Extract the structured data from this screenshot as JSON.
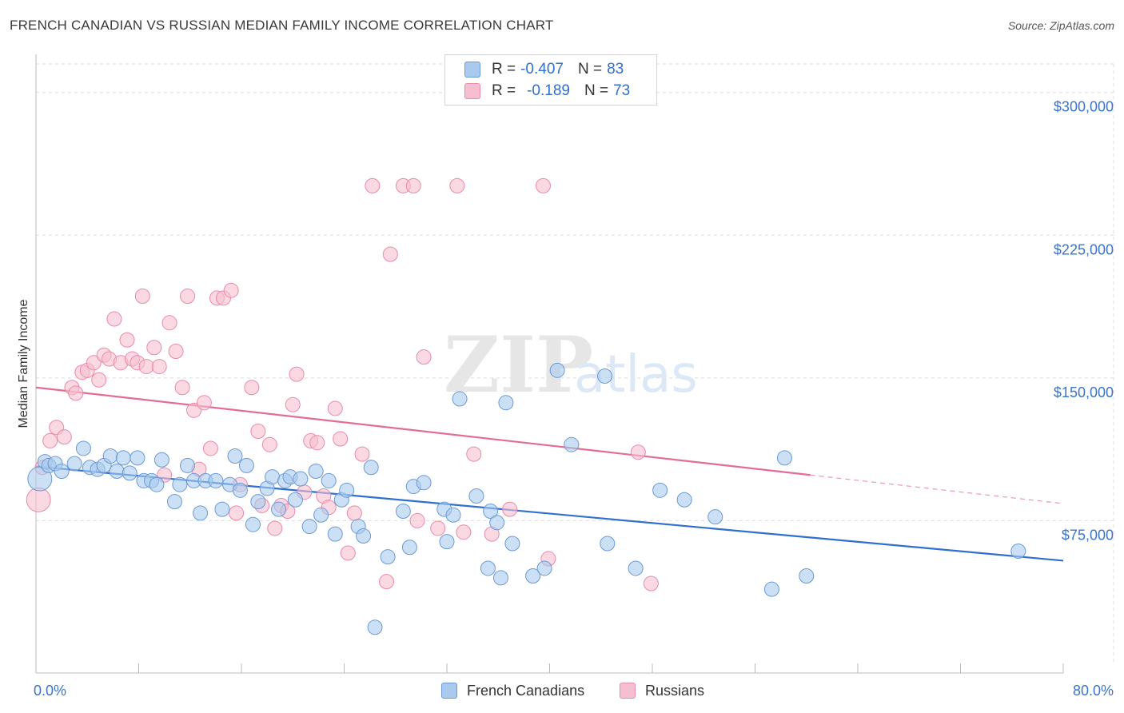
{
  "title": "FRENCH CANADIAN VS RUSSIAN MEDIAN FAMILY INCOME CORRELATION CHART",
  "source": "Source: ZipAtlas.com",
  "watermark": {
    "zip": "ZIP",
    "atlas": "atlas"
  },
  "legend": {
    "french": {
      "r_label": "R =",
      "r_value": "-0.407",
      "n_label": "N =",
      "n_value": "83"
    },
    "russian": {
      "r_label": "R =",
      "r_value": "-0.189",
      "n_label": "N =",
      "n_value": "73"
    }
  },
  "colors": {
    "french_fill": "#a9c9ee",
    "french_stroke": "#6b9ad6",
    "french_line": "#2f6fd0",
    "russian_fill": "#f6bfd0",
    "russian_stroke": "#e98aa8",
    "russian_line": "#e26c95",
    "axis_text": "#3a74cc",
    "grid": "#dcdcdc"
  },
  "chart_data": {
    "type": "scatter",
    "title": "FRENCH CANADIAN VS RUSSIAN MEDIAN FAMILY INCOME CORRELATION CHART",
    "xlabel": "",
    "ylabel": "Median Family Income",
    "xlim": [
      0,
      80
    ],
    "ylim": [
      0,
      315000
    ],
    "x_tick_labels": [
      "0.0%",
      "80.0%"
    ],
    "y_ticks": [
      {
        "value": 75000,
        "label": "$75,000"
      },
      {
        "value": 150000,
        "label": "$150,000"
      },
      {
        "value": 225000,
        "label": "$225,000"
      },
      {
        "value": 300000,
        "label": "$300,000"
      }
    ],
    "grid": true,
    "legend_position": "top-center and bottom",
    "series": [
      {
        "name": "French Canadians",
        "trend": {
          "x": [
            0,
            80
          ],
          "y": [
            103500,
            54000
          ],
          "dashed_from": null
        },
        "points": [
          [
            0.3,
            97000
          ],
          [
            0.7,
            106000
          ],
          [
            1.0,
            104000
          ],
          [
            1.5,
            105000
          ],
          [
            2.0,
            101000
          ],
          [
            3.0,
            105000
          ],
          [
            3.7,
            113000
          ],
          [
            4.2,
            103000
          ],
          [
            4.8,
            102000
          ],
          [
            5.3,
            104000
          ],
          [
            5.8,
            109000
          ],
          [
            6.3,
            101000
          ],
          [
            6.8,
            108000
          ],
          [
            7.3,
            100000
          ],
          [
            7.9,
            108000
          ],
          [
            8.4,
            96000
          ],
          [
            9.0,
            96000
          ],
          [
            9.4,
            94000
          ],
          [
            9.8,
            107000
          ],
          [
            10.8,
            85000
          ],
          [
            11.2,
            94000
          ],
          [
            11.8,
            104000
          ],
          [
            12.3,
            96000
          ],
          [
            12.8,
            79000
          ],
          [
            13.2,
            96000
          ],
          [
            14.0,
            96000
          ],
          [
            14.5,
            81000
          ],
          [
            15.1,
            94000
          ],
          [
            15.5,
            109000
          ],
          [
            15.9,
            91000
          ],
          [
            16.4,
            104000
          ],
          [
            16.9,
            73000
          ],
          [
            17.3,
            85000
          ],
          [
            18.0,
            92000
          ],
          [
            18.4,
            98000
          ],
          [
            18.9,
            81000
          ],
          [
            19.4,
            96000
          ],
          [
            19.8,
            98000
          ],
          [
            20.2,
            86000
          ],
          [
            20.6,
            97000
          ],
          [
            21.3,
            72000
          ],
          [
            21.8,
            101000
          ],
          [
            22.2,
            78000
          ],
          [
            22.8,
            96000
          ],
          [
            23.3,
            68000
          ],
          [
            23.8,
            86000
          ],
          [
            24.2,
            91000
          ],
          [
            25.1,
            72000
          ],
          [
            25.5,
            67000
          ],
          [
            26.1,
            103000
          ],
          [
            26.4,
            19000
          ],
          [
            27.4,
            56000
          ],
          [
            28.6,
            80000
          ],
          [
            29.1,
            61000
          ],
          [
            29.4,
            93000
          ],
          [
            30.2,
            95000
          ],
          [
            31.8,
            81000
          ],
          [
            32.0,
            64000
          ],
          [
            32.5,
            78000
          ],
          [
            33.0,
            139000
          ],
          [
            34.3,
            88000
          ],
          [
            35.2,
            50000
          ],
          [
            35.4,
            80000
          ],
          [
            35.9,
            74000
          ],
          [
            36.2,
            45000
          ],
          [
            36.6,
            137000
          ],
          [
            37.1,
            63000
          ],
          [
            38.7,
            46000
          ],
          [
            39.6,
            50000
          ],
          [
            40.6,
            154000
          ],
          [
            41.7,
            115000
          ],
          [
            44.3,
            151000
          ],
          [
            44.5,
            63000
          ],
          [
            46.7,
            50000
          ],
          [
            48.6,
            91000
          ],
          [
            50.5,
            86000
          ],
          [
            52.9,
            77000
          ],
          [
            57.3,
            39000
          ],
          [
            58.3,
            108000
          ],
          [
            60.0,
            46000
          ],
          [
            76.5,
            59000
          ]
        ]
      },
      {
        "name": "Russians",
        "trend": {
          "x": [
            0,
            80
          ],
          "y": [
            145000,
            84000
          ],
          "dashed_from": 60.3
        },
        "points": [
          [
            0.2,
            86000
          ],
          [
            0.5,
            103000
          ],
          [
            1.1,
            117000
          ],
          [
            1.6,
            124000
          ],
          [
            2.2,
            119000
          ],
          [
            2.8,
            145000
          ],
          [
            3.1,
            142000
          ],
          [
            3.6,
            153000
          ],
          [
            4.0,
            154000
          ],
          [
            4.5,
            158000
          ],
          [
            4.9,
            149000
          ],
          [
            5.3,
            162000
          ],
          [
            5.7,
            160000
          ],
          [
            6.1,
            181000
          ],
          [
            6.6,
            158000
          ],
          [
            7.1,
            170000
          ],
          [
            7.5,
            160000
          ],
          [
            7.9,
            158000
          ],
          [
            8.3,
            193000
          ],
          [
            8.6,
            156000
          ],
          [
            9.2,
            166000
          ],
          [
            9.6,
            156000
          ],
          [
            10.0,
            99000
          ],
          [
            10.4,
            179000
          ],
          [
            10.9,
            164000
          ],
          [
            11.4,
            145000
          ],
          [
            11.8,
            193000
          ],
          [
            12.3,
            133000
          ],
          [
            12.7,
            102000
          ],
          [
            13.1,
            137000
          ],
          [
            13.6,
            113000
          ],
          [
            14.1,
            192000
          ],
          [
            14.6,
            192000
          ],
          [
            15.2,
            196000
          ],
          [
            15.6,
            79000
          ],
          [
            15.9,
            94000
          ],
          [
            16.8,
            145000
          ],
          [
            17.3,
            122000
          ],
          [
            17.6,
            83000
          ],
          [
            18.2,
            115000
          ],
          [
            18.6,
            71000
          ],
          [
            19.1,
            83000
          ],
          [
            19.6,
            80000
          ],
          [
            20.0,
            136000
          ],
          [
            20.3,
            152000
          ],
          [
            20.9,
            90000
          ],
          [
            21.4,
            117000
          ],
          [
            21.9,
            116000
          ],
          [
            22.4,
            88000
          ],
          [
            22.8,
            82000
          ],
          [
            23.3,
            134000
          ],
          [
            23.7,
            118000
          ],
          [
            24.3,
            58000
          ],
          [
            24.8,
            79000
          ],
          [
            25.4,
            110000
          ],
          [
            26.2,
            251000
          ],
          [
            27.3,
            43000
          ],
          [
            27.6,
            215000
          ],
          [
            28.6,
            251000
          ],
          [
            29.4,
            251000
          ],
          [
            29.7,
            75000
          ],
          [
            30.2,
            161000
          ],
          [
            31.3,
            71000
          ],
          [
            32.8,
            251000
          ],
          [
            33.3,
            69000
          ],
          [
            34.1,
            110000
          ],
          [
            35.5,
            68000
          ],
          [
            36.9,
            81000
          ],
          [
            39.5,
            251000
          ],
          [
            39.9,
            55000
          ],
          [
            46.9,
            111000
          ],
          [
            47.9,
            42000
          ]
        ]
      }
    ]
  },
  "bottom_legend": {
    "french": "French Canadians",
    "russian": "Russians"
  }
}
